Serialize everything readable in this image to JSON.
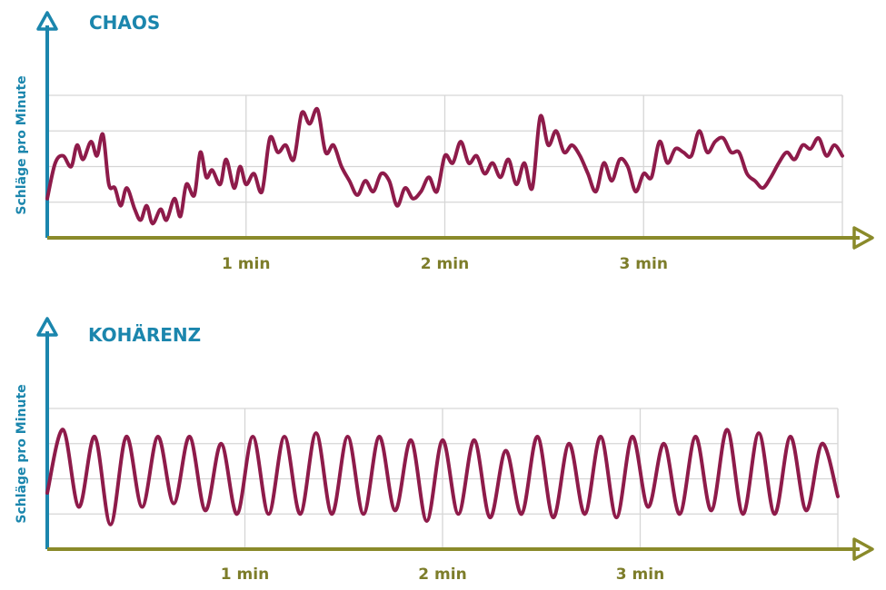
{
  "colors": {
    "axis_y": "#1b86ad",
    "axis_x": "#8a8a2a",
    "title": "#1b86ad",
    "ylabel": "#1b86ad",
    "tick": "#7d7d2a",
    "grid": "#d6d6d6",
    "line": "#8e1b4a"
  },
  "chart_data": [
    {
      "type": "line",
      "title": "CHAOS",
      "ylabel": "Schläge pro Minute",
      "xlabel": "",
      "x_ticks": [
        {
          "value": 1,
          "label": "1 min"
        },
        {
          "value": 2,
          "label": "2 min"
        },
        {
          "value": 3,
          "label": "3 min"
        }
      ],
      "xlim": [
        0,
        4
      ],
      "ylim": [
        0,
        4
      ],
      "grid": true,
      "series": [
        {
          "x": [
            0.0,
            0.04,
            0.08,
            0.12,
            0.15,
            0.18,
            0.22,
            0.25,
            0.28,
            0.31,
            0.34,
            0.37,
            0.4,
            0.44,
            0.47,
            0.5,
            0.53,
            0.57,
            0.6,
            0.64,
            0.67,
            0.7,
            0.74,
            0.77,
            0.8,
            0.83,
            0.87,
            0.9,
            0.94,
            0.97,
            1.0,
            1.04,
            1.08,
            1.12,
            1.16,
            1.2,
            1.24,
            1.28,
            1.32,
            1.36,
            1.4,
            1.44,
            1.48,
            1.52,
            1.56,
            1.6,
            1.64,
            1.68,
            1.72,
            1.76,
            1.8,
            1.84,
            1.88,
            1.92,
            1.96,
            2.0,
            2.04,
            2.08,
            2.12,
            2.16,
            2.2,
            2.24,
            2.28,
            2.32,
            2.36,
            2.4,
            2.44,
            2.48,
            2.52,
            2.56,
            2.6,
            2.64,
            2.68,
            2.72,
            2.76,
            2.8,
            2.84,
            2.88,
            2.92,
            2.96,
            3.0,
            3.04,
            3.08,
            3.12,
            3.16,
            3.2,
            3.24,
            3.28,
            3.32,
            3.36,
            3.4,
            3.44,
            3.48,
            3.52,
            3.56,
            3.6,
            3.64,
            3.68,
            3.72,
            3.76,
            3.8,
            3.84,
            3.88,
            3.92,
            3.96,
            4.0
          ],
          "y": [
            1.1,
            2.1,
            2.3,
            2.0,
            2.6,
            2.2,
            2.7,
            2.3,
            2.9,
            1.5,
            1.4,
            0.9,
            1.4,
            0.8,
            0.5,
            0.9,
            0.4,
            0.8,
            0.5,
            1.1,
            0.6,
            1.5,
            1.2,
            2.4,
            1.7,
            1.9,
            1.5,
            2.2,
            1.4,
            2.0,
            1.5,
            1.8,
            1.3,
            2.8,
            2.4,
            2.6,
            2.2,
            3.5,
            3.2,
            3.6,
            2.4,
            2.6,
            2.0,
            1.6,
            1.2,
            1.6,
            1.3,
            1.8,
            1.6,
            0.9,
            1.4,
            1.1,
            1.3,
            1.7,
            1.3,
            2.3,
            2.1,
            2.7,
            2.1,
            2.3,
            1.8,
            2.1,
            1.7,
            2.2,
            1.5,
            2.1,
            1.4,
            3.4,
            2.6,
            3.0,
            2.4,
            2.6,
            2.3,
            1.8,
            1.3,
            2.1,
            1.6,
            2.2,
            2.0,
            1.3,
            1.8,
            1.7,
            2.7,
            2.1,
            2.5,
            2.4,
            2.3,
            3.0,
            2.4,
            2.7,
            2.8,
            2.4,
            2.4,
            1.8,
            1.6,
            1.4,
            1.7,
            2.1,
            2.4,
            2.2,
            2.6,
            2.5,
            2.8,
            2.3,
            2.6,
            2.3
          ]
        }
      ]
    },
    {
      "type": "line",
      "title": "KOHÄRENZ",
      "ylabel": "Schläge pro Minute",
      "xlabel": "",
      "x_ticks": [
        {
          "value": 1,
          "label": "1 min"
        },
        {
          "value": 2,
          "label": "2 min"
        },
        {
          "value": 3,
          "label": "3 min"
        }
      ],
      "xlim": [
        0,
        4
      ],
      "ylim": [
        0,
        4
      ],
      "grid": true,
      "series": [
        {
          "x": [
            0.0,
            0.08,
            0.16,
            0.24,
            0.32,
            0.4,
            0.48,
            0.56,
            0.64,
            0.72,
            0.8,
            0.88,
            0.96,
            1.04,
            1.12,
            1.2,
            1.28,
            1.36,
            1.44,
            1.52,
            1.6,
            1.68,
            1.76,
            1.84,
            1.92,
            2.0,
            2.08,
            2.16,
            2.24,
            2.32,
            2.4,
            2.48,
            2.56,
            2.64,
            2.72,
            2.8,
            2.88,
            2.96,
            3.04,
            3.12,
            3.2,
            3.28,
            3.36,
            3.44,
            3.52,
            3.6,
            3.68,
            3.76,
            3.84,
            3.92,
            4.0
          ],
          "y": [
            1.6,
            3.4,
            1.2,
            3.2,
            0.7,
            3.2,
            1.2,
            3.2,
            1.3,
            3.2,
            1.1,
            3.0,
            1.0,
            3.2,
            1.0,
            3.2,
            1.0,
            3.3,
            1.0,
            3.2,
            1.0,
            3.2,
            1.1,
            3.1,
            0.8,
            3.1,
            1.0,
            3.1,
            0.9,
            2.8,
            1.0,
            3.2,
            0.9,
            3.0,
            1.0,
            3.2,
            0.9,
            3.2,
            1.2,
            3.0,
            1.0,
            3.2,
            1.1,
            3.4,
            1.0,
            3.3,
            1.0,
            3.2,
            1.1,
            3.0,
            1.5
          ]
        }
      ]
    }
  ]
}
